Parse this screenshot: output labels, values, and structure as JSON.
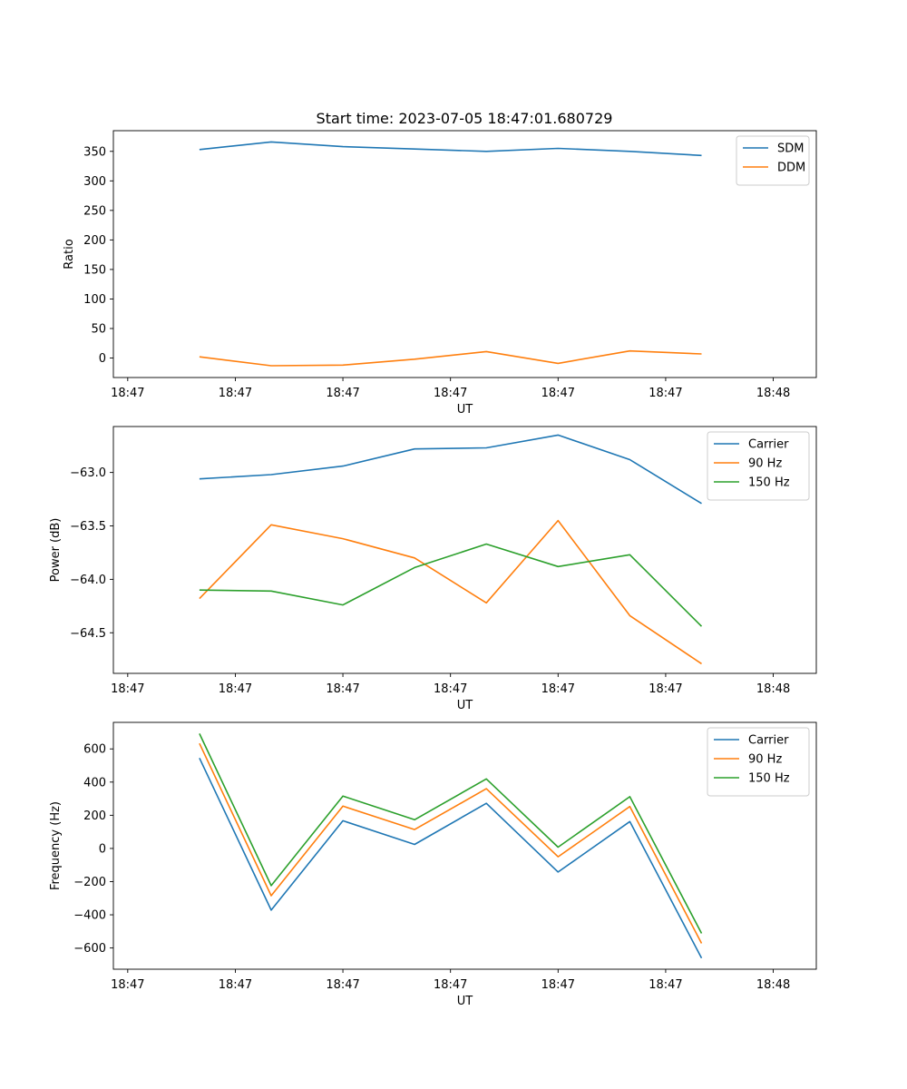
{
  "figure_title": "Start time: 2023-07-05 18:47:01.680729",
  "chart_data": [
    {
      "type": "line",
      "name": "ratio",
      "title": "Start time: 2023-07-05 18:47:01.680729",
      "xlabel": "UT",
      "ylabel": "Ratio",
      "xlim": [
        -1.2,
        8.6
      ],
      "ylim": [
        -33,
        385
      ],
      "x": [
        0,
        1,
        2,
        3,
        4,
        5,
        6,
        7
      ],
      "x_ticks": [
        -1,
        0.5,
        2,
        3.5,
        5,
        6.5,
        8
      ],
      "x_tick_labels": [
        "18:47",
        "18:47",
        "18:47",
        "18:47",
        "18:47",
        "18:47",
        "18:48"
      ],
      "y_ticks": [
        0,
        50,
        100,
        150,
        200,
        250,
        300,
        350
      ],
      "y_tick_labels": [
        "0",
        "50",
        "100",
        "150",
        "200",
        "250",
        "300",
        "350"
      ],
      "grid": false,
      "legend": "top-right",
      "series": [
        {
          "name": "SDM",
          "color": "#1f77b4",
          "values": [
            353,
            366,
            358,
            354,
            350,
            355,
            350,
            343
          ]
        },
        {
          "name": "DDM",
          "color": "#ff7f0e",
          "values": [
            2,
            -13,
            -12,
            -2,
            11,
            -9,
            12,
            7
          ]
        }
      ]
    },
    {
      "type": "line",
      "name": "power",
      "title": "",
      "xlabel": "UT",
      "ylabel": "Power (dB)",
      "xlim": [
        -1.2,
        8.6
      ],
      "ylim": [
        -64.88,
        -62.57
      ],
      "x": [
        0,
        1,
        2,
        3,
        4,
        5,
        6,
        7
      ],
      "x_ticks": [
        -1,
        0.5,
        2,
        3.5,
        5,
        6.5,
        8
      ],
      "x_tick_labels": [
        "18:47",
        "18:47",
        "18:47",
        "18:47",
        "18:47",
        "18:47",
        "18:48"
      ],
      "y_ticks": [
        -64.5,
        -64.0,
        -63.5,
        -63.0
      ],
      "y_tick_labels": [
        "−64.5",
        "−64.0",
        "−63.5",
        "−63.0"
      ],
      "grid": false,
      "legend": "top-right",
      "series": [
        {
          "name": "Carrier",
          "color": "#1f77b4",
          "values": [
            -63.06,
            -63.02,
            -62.94,
            -62.78,
            -62.77,
            -62.65,
            -62.88,
            -63.29
          ]
        },
        {
          "name": "90 Hz",
          "color": "#ff7f0e",
          "values": [
            -64.18,
            -63.49,
            -63.62,
            -63.8,
            -64.22,
            -63.45,
            -64.34,
            -64.79
          ]
        },
        {
          "name": "150 Hz",
          "color": "#2ca02c",
          "values": [
            -64.1,
            -64.11,
            -64.24,
            -63.89,
            -63.67,
            -63.88,
            -63.77,
            -64.44
          ]
        }
      ]
    },
    {
      "type": "line",
      "name": "frequency",
      "title": "",
      "xlabel": "UT",
      "ylabel": "Frequency (Hz)",
      "xlim": [
        -1.2,
        8.6
      ],
      "ylim": [
        -728,
        760
      ],
      "x": [
        0,
        1,
        2,
        3,
        4,
        5,
        6,
        7
      ],
      "x_ticks": [
        -1,
        0.5,
        2,
        3.5,
        5,
        6.5,
        8
      ],
      "x_tick_labels": [
        "18:47",
        "18:47",
        "18:47",
        "18:47",
        "18:47",
        "18:47",
        "18:48"
      ],
      "y_ticks": [
        -600,
        -400,
        -200,
        0,
        200,
        400,
        600
      ],
      "y_tick_labels": [
        "−600",
        "−400",
        "−200",
        "0",
        "200",
        "400",
        "600"
      ],
      "grid": false,
      "legend": "top-right",
      "series": [
        {
          "name": "Carrier",
          "color": "#1f77b4",
          "values": [
            545,
            -372,
            167,
            24,
            272,
            -142,
            162,
            -661
          ]
        },
        {
          "name": "90 Hz",
          "color": "#ff7f0e",
          "values": [
            633,
            -285,
            255,
            114,
            360,
            -50,
            253,
            -572
          ]
        },
        {
          "name": "150 Hz",
          "color": "#2ca02c",
          "values": [
            692,
            -224,
            316,
            173,
            419,
            8,
            312,
            -512
          ]
        }
      ]
    }
  ]
}
